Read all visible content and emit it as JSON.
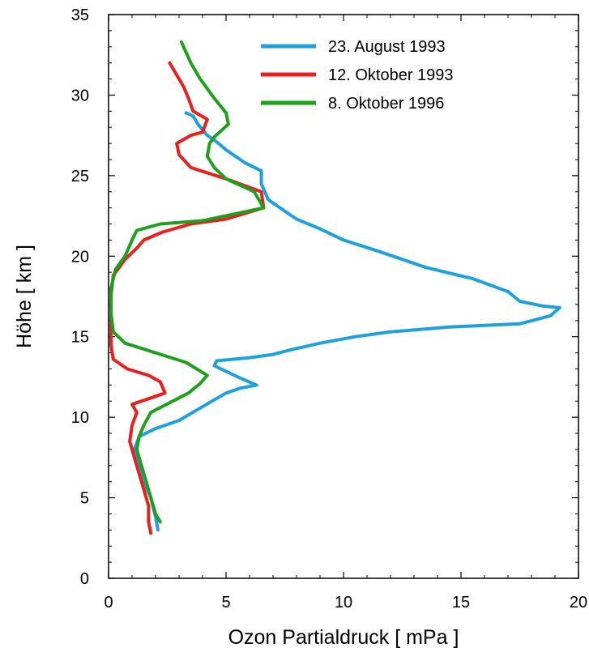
{
  "chart_data": {
    "type": "line",
    "title": "",
    "xlabel": "Ozon Partialdruck [ mPa ]",
    "ylabel": "Höhe [ km ]",
    "xlim": [
      0,
      20
    ],
    "ylim": [
      0,
      35
    ],
    "x_ticks": [
      0,
      5,
      10,
      15,
      20
    ],
    "y_ticks": [
      0,
      5,
      10,
      15,
      20,
      25,
      30,
      35
    ],
    "grid": false,
    "legend_position": "top-right",
    "series": [
      {
        "name": "23. August 1993",
        "color": "#1ea0dc",
        "points": [
          [
            2.1,
            3.0
          ],
          [
            2.0,
            3.8
          ],
          [
            1.8,
            5.0
          ],
          [
            1.5,
            6.0
          ],
          [
            1.3,
            7.0
          ],
          [
            1.1,
            8.0
          ],
          [
            1.3,
            8.8
          ],
          [
            2.0,
            9.3
          ],
          [
            3.0,
            9.8
          ],
          [
            3.7,
            10.4
          ],
          [
            4.4,
            11.0
          ],
          [
            5.0,
            11.5
          ],
          [
            5.6,
            11.8
          ],
          [
            6.3,
            12.0
          ],
          [
            5.5,
            12.5
          ],
          [
            4.5,
            13.2
          ],
          [
            4.6,
            13.5
          ],
          [
            6.0,
            13.7
          ],
          [
            7.0,
            13.9
          ],
          [
            7.8,
            14.2
          ],
          [
            9.0,
            14.6
          ],
          [
            10.5,
            15.0
          ],
          [
            12.0,
            15.3
          ],
          [
            14.5,
            15.6
          ],
          [
            17.5,
            15.8
          ],
          [
            18.8,
            16.3
          ],
          [
            19.2,
            16.8
          ],
          [
            18.5,
            16.9
          ],
          [
            17.5,
            17.2
          ],
          [
            17.0,
            17.8
          ],
          [
            15.5,
            18.6
          ],
          [
            13.5,
            19.3
          ],
          [
            11.5,
            20.3
          ],
          [
            10.0,
            21.0
          ],
          [
            9.0,
            21.7
          ],
          [
            8.0,
            22.3
          ],
          [
            7.5,
            22.8
          ],
          [
            6.8,
            23.5
          ],
          [
            6.5,
            24.5
          ],
          [
            6.5,
            25.3
          ],
          [
            5.8,
            25.8
          ],
          [
            5.0,
            26.6
          ],
          [
            4.6,
            27.1
          ],
          [
            4.2,
            27.5
          ],
          [
            3.8,
            28.2
          ],
          [
            3.6,
            28.7
          ],
          [
            3.3,
            28.9
          ]
        ]
      },
      {
        "name": "12. Oktober 1993",
        "color": "#e82020",
        "points": [
          [
            1.8,
            2.8
          ],
          [
            1.7,
            3.5
          ],
          [
            1.7,
            4.5
          ],
          [
            1.5,
            5.5
          ],
          [
            1.3,
            6.5
          ],
          [
            1.1,
            7.5
          ],
          [
            0.9,
            8.5
          ],
          [
            1.0,
            9.5
          ],
          [
            1.2,
            10.3
          ],
          [
            1.0,
            10.8
          ],
          [
            1.8,
            11.2
          ],
          [
            2.4,
            11.5
          ],
          [
            2.2,
            12.2
          ],
          [
            1.7,
            12.6
          ],
          [
            0.8,
            13.0
          ],
          [
            0.2,
            13.6
          ],
          [
            0.1,
            14.5
          ],
          [
            0.1,
            16.0
          ],
          [
            0.1,
            17.5
          ],
          [
            0.2,
            18.8
          ],
          [
            0.7,
            19.8
          ],
          [
            1.2,
            20.5
          ],
          [
            1.5,
            21.0
          ],
          [
            2.3,
            21.5
          ],
          [
            3.5,
            22.0
          ],
          [
            5.0,
            22.3
          ],
          [
            6.6,
            23.0
          ],
          [
            6.5,
            24.0
          ],
          [
            5.0,
            24.8
          ],
          [
            3.5,
            25.5
          ],
          [
            3.0,
            26.3
          ],
          [
            2.9,
            27.0
          ],
          [
            3.5,
            27.5
          ],
          [
            4.0,
            27.7
          ],
          [
            4.2,
            28.5
          ],
          [
            3.6,
            29.0
          ],
          [
            3.4,
            29.8
          ],
          [
            3.2,
            30.5
          ],
          [
            3.0,
            31.0
          ],
          [
            2.8,
            31.5
          ],
          [
            2.6,
            32.0
          ]
        ]
      },
      {
        "name": "8. Oktober 1996",
        "color": "#1ea01e",
        "points": [
          [
            2.2,
            3.5
          ],
          [
            2.0,
            4.0
          ],
          [
            1.8,
            5.0
          ],
          [
            1.6,
            6.0
          ],
          [
            1.4,
            7.0
          ],
          [
            1.2,
            8.0
          ],
          [
            1.3,
            8.8
          ],
          [
            1.5,
            9.5
          ],
          [
            1.8,
            10.3
          ],
          [
            2.6,
            10.9
          ],
          [
            3.4,
            11.5
          ],
          [
            3.9,
            12.1
          ],
          [
            4.2,
            12.6
          ],
          [
            3.3,
            13.4
          ],
          [
            2.0,
            14.0
          ],
          [
            0.7,
            14.6
          ],
          [
            0.2,
            15.3
          ],
          [
            0.1,
            16.5
          ],
          [
            0.1,
            18.0
          ],
          [
            0.3,
            19.2
          ],
          [
            0.7,
            20.0
          ],
          [
            1.0,
            21.0
          ],
          [
            1.2,
            21.6
          ],
          [
            2.2,
            22.0
          ],
          [
            4.0,
            22.2
          ],
          [
            6.6,
            23.0
          ],
          [
            6.2,
            24.0
          ],
          [
            5.0,
            24.8
          ],
          [
            4.5,
            25.5
          ],
          [
            4.2,
            26.2
          ],
          [
            4.3,
            27.0
          ],
          [
            4.5,
            27.4
          ],
          [
            5.1,
            28.2
          ],
          [
            5.0,
            28.9
          ],
          [
            4.5,
            29.8
          ],
          [
            3.9,
            31.0
          ],
          [
            3.5,
            32.0
          ],
          [
            3.1,
            33.3
          ]
        ]
      }
    ]
  }
}
